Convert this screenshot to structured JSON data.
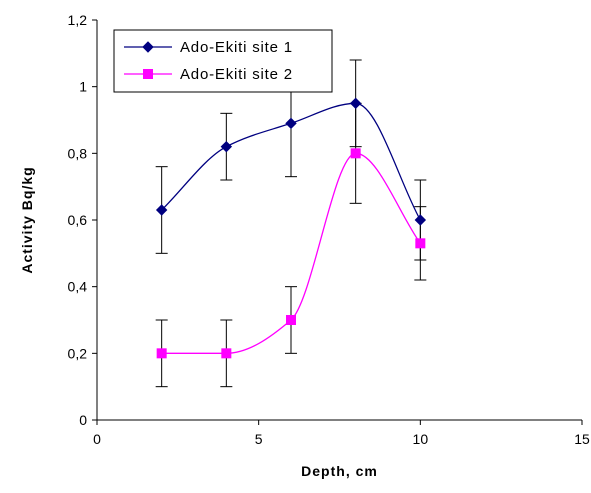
{
  "chart_data": {
    "type": "line",
    "title": "",
    "xlabel": "Depth, cm",
    "ylabel": "Activity  Bq/kg",
    "xlim": [
      0,
      15
    ],
    "ylim": [
      0,
      1.2
    ],
    "x_ticks": [
      0,
      5,
      10,
      15
    ],
    "y_ticks": [
      0,
      0.2,
      0.4,
      0.6,
      0.8,
      1,
      1.2
    ],
    "x_tick_labels": [
      "0",
      "5",
      "10",
      "15"
    ],
    "y_tick_labels": [
      "0",
      "0,2",
      "0,4",
      "0,6",
      "0,8",
      "1",
      "1,2"
    ],
    "grid": false,
    "smoothed": true,
    "legend_position": "top-left",
    "series": [
      {
        "name": "Ado-Ekiti site 1",
        "color": "#000080",
        "marker": "diamond",
        "x": [
          2,
          4,
          6,
          8,
          10
        ],
        "y": [
          0.63,
          0.82,
          0.89,
          0.95,
          0.6
        ],
        "error": [
          0.13,
          0.1,
          0.16,
          0.13,
          0.12
        ]
      },
      {
        "name": "Ado-Ekiti site 2",
        "color": "#FF00FF",
        "marker": "square",
        "x": [
          2,
          4,
          6,
          8,
          10
        ],
        "y": [
          0.2,
          0.2,
          0.3,
          0.8,
          0.53
        ],
        "error": [
          0.1,
          0.1,
          0.1,
          0.15,
          0.11
        ]
      }
    ]
  }
}
